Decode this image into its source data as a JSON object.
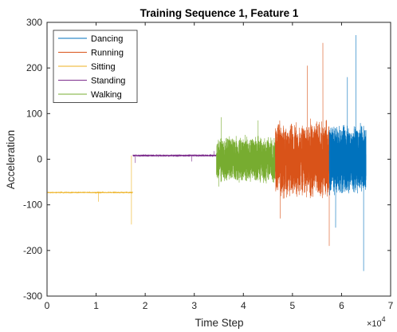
{
  "chart_data": {
    "type": "line",
    "title": "Training Sequence 1, Feature 1",
    "xlabel": "Time Step",
    "ylabel": "Acceleration",
    "x_exponent_label": "×10",
    "x_exponent_power": "4",
    "xlim": [
      0,
      7
    ],
    "ylim": [
      -300,
      300
    ],
    "x_scale": 10000,
    "xticks": [
      0,
      1,
      2,
      3,
      4,
      5,
      6,
      7
    ],
    "yticks": [
      -300,
      -200,
      -100,
      0,
      100,
      200,
      300
    ],
    "grid": false,
    "legend_position": "top-left",
    "series": [
      {
        "name": "Dancing",
        "color": "#0072BD",
        "x_start": 5.75,
        "x_end": 6.5,
        "baseline": 0,
        "amplitude": 80,
        "extremes": [
          [
            6.29,
            272
          ],
          [
            6.45,
            -245
          ],
          [
            5.88,
            -150
          ],
          [
            6.12,
            180
          ]
        ]
      },
      {
        "name": "Running",
        "color": "#D95319",
        "x_start": 4.65,
        "x_end": 5.75,
        "baseline": 0,
        "amplitude": 90,
        "extremes": [
          [
            5.62,
            255
          ],
          [
            5.75,
            -190
          ],
          [
            5.3,
            205
          ],
          [
            4.75,
            -130
          ]
        ]
      },
      {
        "name": "Sitting",
        "color": "#EDB120",
        "x_start": 0.0,
        "x_end": 1.75,
        "baseline": -73,
        "amplitude": 1,
        "extremes": [
          [
            1.72,
            8
          ],
          [
            1.72,
            -143
          ],
          [
            1.05,
            -93
          ]
        ]
      },
      {
        "name": "Standing",
        "color": "#7E2F8E",
        "x_start": 1.75,
        "x_end": 3.45,
        "baseline": 8,
        "amplitude": 2,
        "extremes": [
          [
            1.8,
            -8
          ],
          [
            3.4,
            18
          ],
          [
            2.95,
            -5
          ]
        ]
      },
      {
        "name": "Walking",
        "color": "#77AC30",
        "x_start": 3.45,
        "x_end": 4.65,
        "baseline": 0,
        "amplitude": 55,
        "extremes": [
          [
            3.55,
            92
          ],
          [
            3.5,
            -60
          ],
          [
            4.3,
            85
          ]
        ]
      }
    ]
  }
}
